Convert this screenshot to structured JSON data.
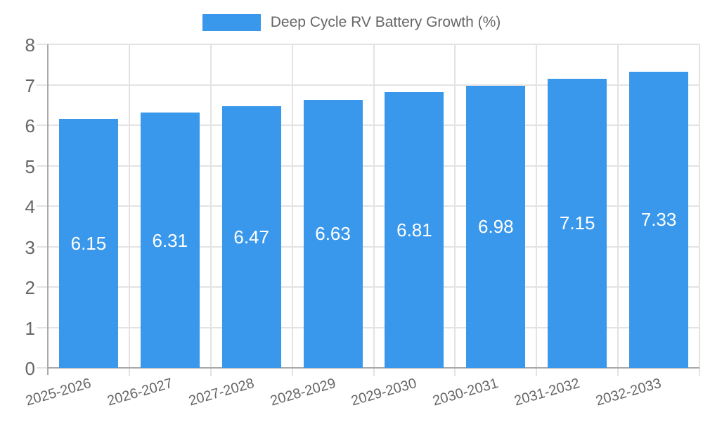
{
  "legend": {
    "label": "Deep Cycle RV Battery Growth (%)"
  },
  "colors": {
    "bar": "#3998EB",
    "grid": "#E3E3E3",
    "axis": "#A9A9A9",
    "tick_label": "#666666",
    "value_label": "#FFFFFF",
    "background": "#FFFFFF"
  },
  "chart_data": {
    "type": "bar",
    "title": "Deep Cycle RV Battery Growth (%)",
    "categories": [
      "2025-2026",
      "2026-2027",
      "2027-2028",
      "2028-2029",
      "2029-2030",
      "2030-2031",
      "2031-2032",
      "2032-2033"
    ],
    "series": [
      {
        "name": "Deep Cycle RV Battery Growth (%)",
        "values": [
          6.15,
          6.31,
          6.47,
          6.63,
          6.81,
          6.98,
          7.15,
          7.33
        ]
      }
    ],
    "value_labels": [
      "6.15",
      "6.31",
      "6.47",
      "6.63",
      "6.81",
      "6.98",
      "7.15",
      "7.33"
    ],
    "xlabel": "",
    "ylabel": "",
    "ylim": [
      0,
      8
    ],
    "yticks": [
      0,
      1,
      2,
      3,
      4,
      5,
      6,
      7,
      8
    ],
    "grid": true,
    "legend_position": "top",
    "bar_label_position": "center"
  }
}
